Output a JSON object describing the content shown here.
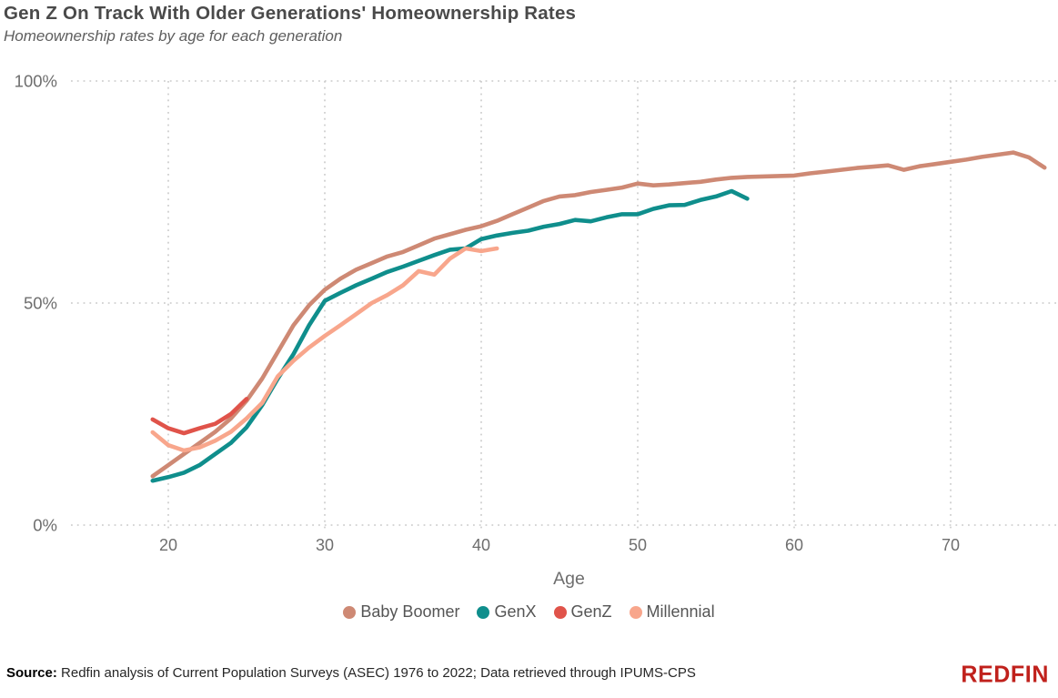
{
  "header": {
    "title": "Gen Z On Track With Older Generations' Homeownership Rates",
    "subtitle": "Homeownership rates by age for each generation"
  },
  "footer": {
    "source_label": "Source:",
    "source_text": " Redfin analysis of Current Population Surveys (ASEC) 1976 to 2022; Data retrieved through IPUMS-CPS",
    "logo_text": "REDFIN",
    "logo_color": "#C0211C"
  },
  "chart_data": {
    "type": "line",
    "title": "Gen Z On Track With Older Generations' Homeownership Rates",
    "subtitle": "Homeownership rates by age for each generation",
    "xlabel": "Age",
    "ylabel": "Homeownership rate",
    "x_ticks": [
      20,
      30,
      40,
      50,
      60,
      70
    ],
    "y_ticks": [
      0,
      50,
      100
    ],
    "y_tick_labels": [
      "0%",
      "50%",
      "100%"
    ],
    "xlim": [
      18.9,
      77
    ],
    "ylim": [
      0,
      100
    ],
    "grid": "dotted",
    "grid_color": "#c9c9c9",
    "legend_position": "bottom",
    "series": [
      {
        "name": "Baby Boomer",
        "color": "#CE8974",
        "x": [
          19,
          20,
          21,
          22,
          23,
          24,
          25,
          26,
          27,
          28,
          29,
          30,
          31,
          32,
          33,
          34,
          35,
          36,
          37,
          38,
          39,
          40,
          41,
          42,
          43,
          44,
          45,
          46,
          47,
          48,
          49,
          50,
          51,
          52,
          53,
          54,
          55,
          56,
          57,
          58,
          59,
          60,
          61,
          62,
          63,
          64,
          65,
          66,
          67,
          68,
          69,
          70,
          71,
          72,
          73,
          74,
          75,
          76
        ],
        "y": [
          11,
          13.5,
          16,
          18.5,
          21,
          24,
          28,
          33,
          39,
          45,
          49.5,
          53,
          55.5,
          57.5,
          59,
          60.5,
          61.5,
          63,
          64.5,
          65.5,
          66.5,
          67.3,
          68.5,
          70,
          71.5,
          73,
          74,
          74.3,
          75,
          75.5,
          76,
          76.9,
          76.5,
          76.7,
          77,
          77.3,
          77.8,
          78.2,
          78.4,
          78.5,
          78.6,
          78.7,
          79.2,
          79.6,
          80,
          80.4,
          80.7,
          81,
          80,
          80.8,
          81.3,
          81.8,
          82.3,
          82.9,
          83.4,
          83.9,
          82.8,
          80.5
        ]
      },
      {
        "name": "GenX",
        "color": "#0F8E8C",
        "x": [
          19,
          20,
          21,
          22,
          23,
          24,
          25,
          26,
          27,
          28,
          29,
          30,
          31,
          32,
          33,
          34,
          35,
          36,
          37,
          38,
          39,
          40,
          41,
          42,
          43,
          44,
          45,
          46,
          47,
          48,
          49,
          50,
          51,
          52,
          53,
          54,
          55,
          56,
          57
        ],
        "y": [
          10,
          10.8,
          11.8,
          13.5,
          16,
          18.5,
          22,
          27,
          33,
          38.5,
          45,
          50.5,
          52.3,
          54,
          55.5,
          57,
          58.2,
          59.5,
          60.8,
          62,
          62.3,
          64.4,
          65.2,
          65.8,
          66.3,
          67.2,
          67.8,
          68.7,
          68.4,
          69.3,
          70,
          70,
          71.2,
          72,
          72.1,
          73.2,
          74,
          75.2,
          73.5
        ]
      },
      {
        "name": "GenZ",
        "color": "#E0534A",
        "x": [
          19,
          20,
          21,
          22,
          23,
          24,
          25
        ],
        "y": [
          23.8,
          21.8,
          20.7,
          21.8,
          22.8,
          25,
          28.4
        ]
      },
      {
        "name": "Millennial",
        "color": "#F8A68C",
        "x": [
          19,
          20,
          21,
          22,
          23,
          24,
          25,
          26,
          27,
          28,
          29,
          30,
          31,
          32,
          33,
          34,
          35,
          36,
          37,
          38,
          39,
          40,
          41
        ],
        "y": [
          20.9,
          18,
          16.8,
          17.5,
          19,
          21,
          24,
          27.5,
          33.5,
          37,
          40,
          42.6,
          45,
          47.5,
          50,
          51.8,
          54,
          57.2,
          56.4,
          60,
          62.3,
          61.7,
          62.3
        ]
      }
    ]
  }
}
